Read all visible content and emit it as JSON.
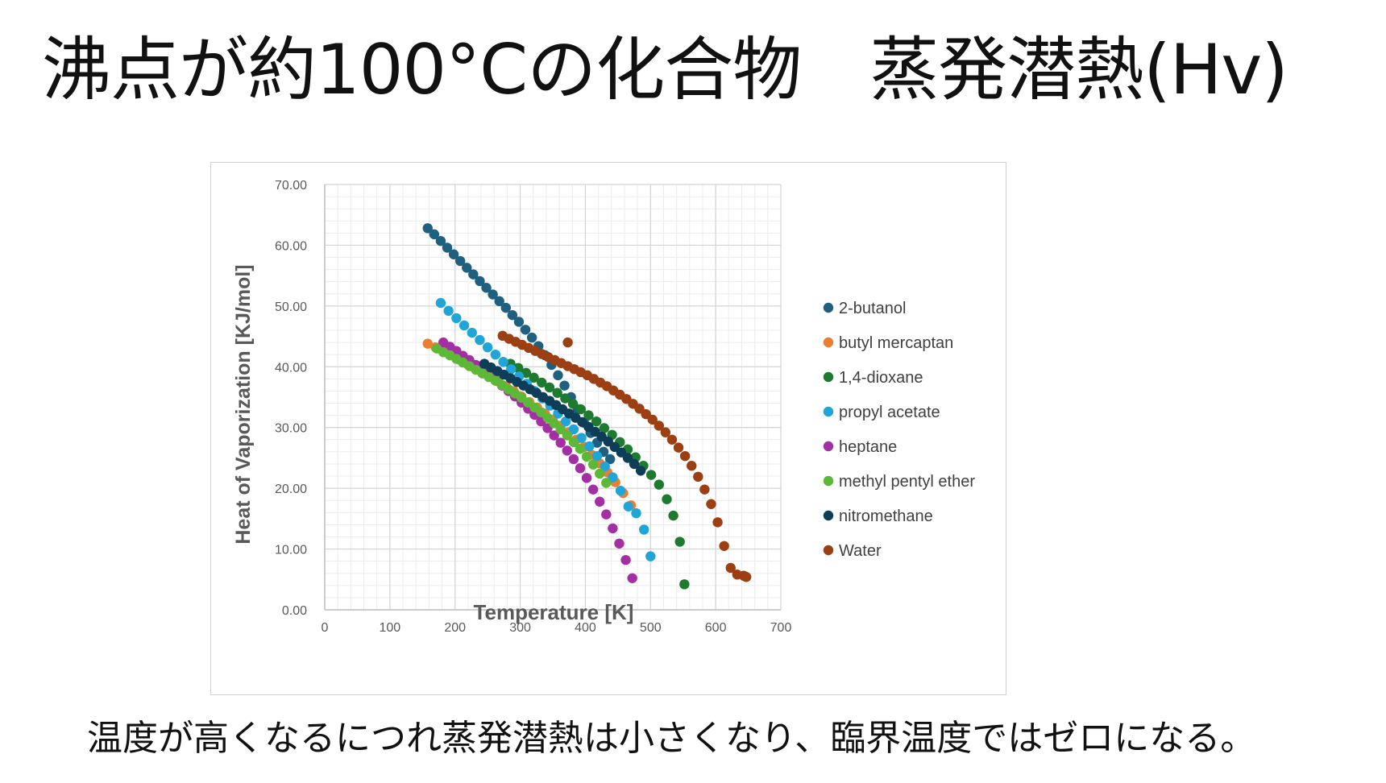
{
  "slide": {
    "title": "沸点が約100°Cの化合物　蒸発潜熱(Hv)",
    "caption": "温度が高くなるにつれ蒸発潜熱は小さくなり、臨界温度ではゼロになる。"
  },
  "chart_data": {
    "type": "scatter",
    "title": "",
    "xlabel": "Temperature [K]",
    "ylabel": "Heat of Vaporization [KJ/mol]",
    "xlim": [
      0,
      700
    ],
    "ylim": [
      0,
      70
    ],
    "x_ticks": [
      0,
      100,
      200,
      300,
      400,
      500,
      600,
      700
    ],
    "y_ticks": [
      0,
      10,
      20,
      30,
      40,
      50,
      60,
      70
    ],
    "x_tick_labels": [
      "0",
      "100",
      "200",
      "300",
      "400",
      "500",
      "600",
      "700"
    ],
    "y_tick_labels": [
      "0.00",
      "10.00",
      "20.00",
      "30.00",
      "40.00",
      "50.00",
      "60.00",
      "70.00"
    ],
    "grid": true,
    "legend_position": "right",
    "series": [
      {
        "name": "2-butanol",
        "color": "#1f5f7f",
        "points": [
          [
            158,
            62.8
          ],
          [
            168,
            61.8
          ],
          [
            178,
            60.7
          ],
          [
            188,
            59.6
          ],
          [
            198,
            58.5
          ],
          [
            208,
            57.4
          ],
          [
            218,
            56.3
          ],
          [
            228,
            55.2
          ],
          [
            238,
            54.1
          ],
          [
            248,
            53.0
          ],
          [
            258,
            51.9
          ],
          [
            268,
            50.8
          ],
          [
            278,
            49.7
          ],
          [
            288,
            48.5
          ],
          [
            298,
            47.4
          ],
          [
            308,
            46.1
          ],
          [
            318,
            44.8
          ],
          [
            328,
            43.4
          ],
          [
            338,
            41.9
          ],
          [
            348,
            40.3
          ],
          [
            358,
            38.6
          ],
          [
            368,
            36.9
          ],
          [
            378,
            35.0
          ],
          [
            388,
            33.0
          ],
          [
            398,
            30.8
          ],
          [
            408,
            29.1
          ],
          [
            418,
            27.5
          ],
          [
            428,
            26.0
          ],
          [
            438,
            24.8
          ]
        ]
      },
      {
        "name": "butyl mercaptan",
        "color": "#ed7d31",
        "points": [
          [
            158,
            43.8
          ],
          [
            170,
            43.2
          ],
          [
            182,
            42.5
          ],
          [
            194,
            41.9
          ],
          [
            206,
            41.2
          ],
          [
            218,
            40.5
          ],
          [
            230,
            39.8
          ],
          [
            242,
            39.1
          ],
          [
            254,
            38.4
          ],
          [
            266,
            37.6
          ],
          [
            278,
            36.8
          ],
          [
            290,
            36.0
          ],
          [
            302,
            35.1
          ],
          [
            314,
            34.2
          ],
          [
            326,
            33.3
          ],
          [
            338,
            32.3
          ],
          [
            350,
            31.3
          ],
          [
            362,
            30.3
          ],
          [
            374,
            29.2
          ],
          [
            386,
            28.0
          ],
          [
            398,
            26.8
          ],
          [
            410,
            25.5
          ],
          [
            422,
            24.1
          ],
          [
            434,
            22.6
          ],
          [
            446,
            21.0
          ],
          [
            458,
            19.2
          ],
          [
            470,
            17.2
          ]
        ]
      },
      {
        "name": "1,4-dioxane",
        "color": "#1e7a2f",
        "points": [
          [
            285,
            40.5
          ],
          [
            297,
            39.8
          ],
          [
            309,
            39.0
          ],
          [
            321,
            38.2
          ],
          [
            333,
            37.4
          ],
          [
            345,
            36.6
          ],
          [
            357,
            35.7
          ],
          [
            369,
            34.8
          ],
          [
            381,
            33.9
          ],
          [
            393,
            33.0
          ],
          [
            405,
            32.0
          ],
          [
            417,
            31.0
          ],
          [
            429,
            29.9
          ],
          [
            441,
            28.8
          ],
          [
            453,
            27.6
          ],
          [
            465,
            26.4
          ],
          [
            477,
            25.1
          ],
          [
            489,
            23.7
          ],
          [
            501,
            22.2
          ],
          [
            513,
            20.6
          ],
          [
            525,
            18.2
          ],
          [
            535,
            15.5
          ],
          [
            545,
            11.2
          ],
          [
            552,
            4.2
          ]
        ]
      },
      {
        "name": "propyl acetate",
        "color": "#1fa5d8",
        "points": [
          [
            178,
            50.5
          ],
          [
            190,
            49.2
          ],
          [
            202,
            48.0
          ],
          [
            214,
            46.8
          ],
          [
            226,
            45.6
          ],
          [
            238,
            44.4
          ],
          [
            250,
            43.2
          ],
          [
            262,
            42.0
          ],
          [
            274,
            40.8
          ],
          [
            286,
            39.6
          ],
          [
            298,
            38.4
          ],
          [
            310,
            37.2
          ],
          [
            322,
            36.0
          ],
          [
            334,
            34.8
          ],
          [
            346,
            33.6
          ],
          [
            358,
            32.3
          ],
          [
            370,
            31.0
          ],
          [
            382,
            29.7
          ],
          [
            394,
            28.3
          ],
          [
            406,
            26.9
          ],
          [
            418,
            25.3
          ],
          [
            430,
            23.6
          ],
          [
            442,
            21.8
          ],
          [
            454,
            19.6
          ],
          [
            466,
            17.0
          ],
          [
            478,
            15.9
          ],
          [
            490,
            13.2
          ],
          [
            500,
            8.8
          ]
        ]
      },
      {
        "name": "heptane",
        "color": "#a330a3",
        "points": [
          [
            182,
            44.0
          ],
          [
            192,
            43.3
          ],
          [
            202,
            42.6
          ],
          [
            212,
            41.8
          ],
          [
            222,
            41.1
          ],
          [
            232,
            40.3
          ],
          [
            242,
            39.5
          ],
          [
            252,
            38.7
          ],
          [
            262,
            37.8
          ],
          [
            272,
            36.9
          ],
          [
            282,
            36.0
          ],
          [
            292,
            35.1
          ],
          [
            302,
            34.1
          ],
          [
            312,
            33.1
          ],
          [
            322,
            32.1
          ],
          [
            332,
            31.0
          ],
          [
            342,
            29.9
          ],
          [
            352,
            28.7
          ],
          [
            362,
            27.5
          ],
          [
            372,
            26.2
          ],
          [
            382,
            24.8
          ],
          [
            392,
            23.3
          ],
          [
            402,
            21.7
          ],
          [
            412,
            19.8
          ],
          [
            422,
            17.8
          ],
          [
            432,
            15.7
          ],
          [
            442,
            13.4
          ],
          [
            452,
            10.9
          ],
          [
            462,
            8.2
          ],
          [
            472,
            5.2
          ]
        ]
      },
      {
        "name": "methyl pentyl ether",
        "color": "#5cb836",
        "points": [
          [
            172,
            43.0
          ],
          [
            182,
            42.4
          ],
          [
            192,
            41.9
          ],
          [
            202,
            41.3
          ],
          [
            212,
            40.7
          ],
          [
            222,
            40.1
          ],
          [
            232,
            39.5
          ],
          [
            242,
            38.9
          ],
          [
            252,
            38.3
          ],
          [
            262,
            37.7
          ],
          [
            272,
            37.0
          ],
          [
            282,
            36.3
          ],
          [
            292,
            35.6
          ],
          [
            302,
            34.9
          ],
          [
            312,
            34.1
          ],
          [
            322,
            33.3
          ],
          [
            332,
            32.5
          ],
          [
            342,
            31.6
          ],
          [
            352,
            30.7
          ],
          [
            362,
            29.7
          ],
          [
            372,
            28.7
          ],
          [
            382,
            27.6
          ],
          [
            392,
            26.5
          ],
          [
            402,
            25.2
          ],
          [
            412,
            23.9
          ],
          [
            422,
            22.4
          ],
          [
            432,
            20.9
          ]
        ]
      },
      {
        "name": "nitromethane",
        "color": "#0d3d57",
        "points": [
          [
            245,
            40.5
          ],
          [
            255,
            39.9
          ],
          [
            265,
            39.3
          ],
          [
            275,
            38.7
          ],
          [
            285,
            38.1
          ],
          [
            295,
            37.5
          ],
          [
            305,
            36.9
          ],
          [
            315,
            36.3
          ],
          [
            325,
            35.7
          ],
          [
            335,
            35.0
          ],
          [
            345,
            34.4
          ],
          [
            355,
            33.7
          ],
          [
            365,
            33.0
          ],
          [
            375,
            32.3
          ],
          [
            385,
            31.6
          ],
          [
            395,
            30.9
          ],
          [
            405,
            30.1
          ],
          [
            415,
            29.3
          ],
          [
            425,
            28.5
          ],
          [
            435,
            27.7
          ],
          [
            445,
            26.8
          ],
          [
            455,
            25.9
          ],
          [
            465,
            25.0
          ],
          [
            475,
            24.0
          ],
          [
            485,
            22.9
          ]
        ]
      },
      {
        "name": "Water",
        "color": "#9c3f12",
        "points": [
          [
            273,
            45.1
          ],
          [
            283,
            44.6
          ],
          [
            293,
            44.1
          ],
          [
            303,
            43.6
          ],
          [
            313,
            43.1
          ],
          [
            323,
            42.6
          ],
          [
            333,
            42.1
          ],
          [
            343,
            41.6
          ],
          [
            353,
            41.1
          ],
          [
            363,
            40.6
          ],
          [
            373,
            40.1
          ],
          [
            383,
            39.6
          ],
          [
            393,
            39.1
          ],
          [
            403,
            38.6
          ],
          [
            413,
            38.0
          ],
          [
            423,
            37.4
          ],
          [
            433,
            36.8
          ],
          [
            443,
            36.1
          ],
          [
            453,
            35.4
          ],
          [
            463,
            34.7
          ],
          [
            473,
            33.9
          ],
          [
            483,
            33.1
          ],
          [
            493,
            32.2
          ],
          [
            503,
            31.3
          ],
          [
            513,
            30.3
          ],
          [
            523,
            29.2
          ],
          [
            533,
            28.0
          ],
          [
            543,
            26.7
          ],
          [
            553,
            25.3
          ],
          [
            563,
            23.7
          ],
          [
            573,
            21.9
          ],
          [
            583,
            19.8
          ],
          [
            593,
            17.4
          ],
          [
            603,
            14.4
          ],
          [
            613,
            10.5
          ],
          [
            623,
            6.9
          ],
          [
            633,
            5.8
          ],
          [
            643,
            5.6
          ],
          [
            645,
            5.5
          ],
          [
            647,
            5.4
          ],
          [
            373,
            44.0
          ]
        ]
      }
    ]
  }
}
